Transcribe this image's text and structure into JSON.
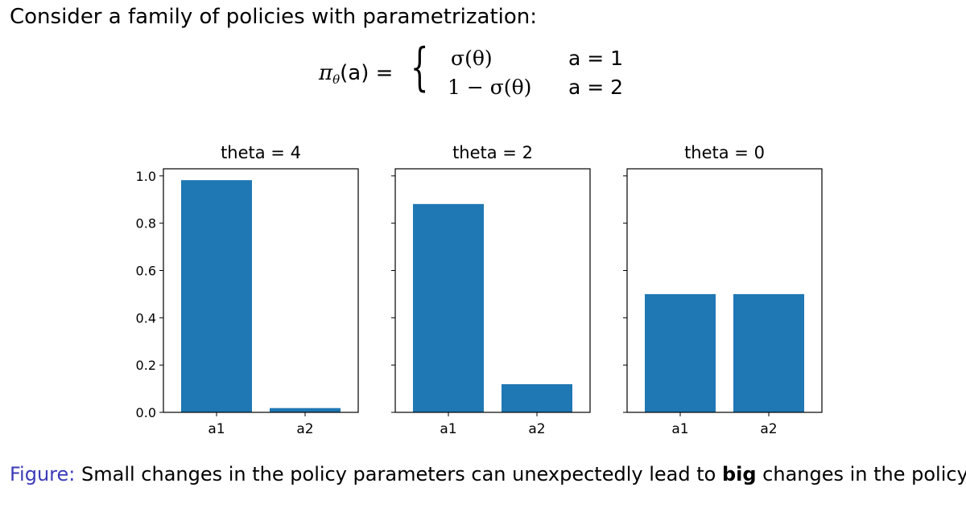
{
  "intro_text": "Consider a family of policies with parametrization:",
  "equation": {
    "lhs": "π",
    "lhs_sub": "θ",
    "lhs_arg": "(a) =",
    "brace": "{",
    "case1_expr": "σ(θ)",
    "case1_cond": "a = 1",
    "case2_expr": "1 − σ(θ)",
    "case2_cond": "a = 2"
  },
  "chart_data": [
    {
      "type": "bar",
      "title": "theta = 4",
      "categories": [
        "a1",
        "a2"
      ],
      "values": [
        0.982,
        0.018
      ],
      "ylim": [
        0,
        1.0
      ],
      "yticks": [
        "0.0",
        "0.2",
        "0.4",
        "0.6",
        "0.8",
        "1.0"
      ],
      "bar_color": "#1f77b4"
    },
    {
      "type": "bar",
      "title": "theta = 2",
      "categories": [
        "a1",
        "a2"
      ],
      "values": [
        0.881,
        0.119
      ],
      "ylim": [
        0,
        1.0
      ],
      "bar_color": "#1f77b4"
    },
    {
      "type": "bar",
      "title": "theta = 0",
      "categories": [
        "a1",
        "a2"
      ],
      "values": [
        0.5,
        0.5
      ],
      "ylim": [
        0,
        1.0
      ],
      "bar_color": "#1f77b4"
    }
  ],
  "caption": {
    "lead": "Figure:",
    "text_before": " Small changes in the policy parameters can unexpectedly lead to ",
    "bold": "big",
    "text_after": " changes in the policy."
  },
  "colors": {
    "caption_lead": "#3b3bb8",
    "bar": "#1f77b4"
  }
}
